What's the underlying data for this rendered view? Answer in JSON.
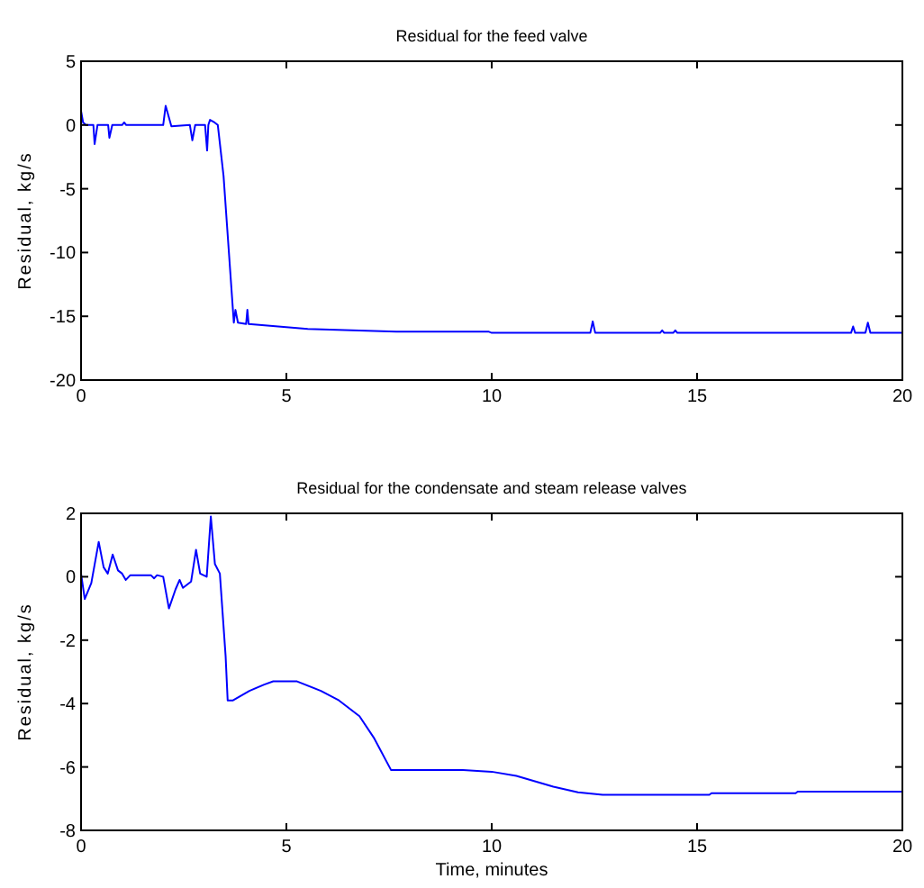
{
  "chart_data": [
    {
      "type": "line",
      "title": "Residual for the feed valve",
      "ylabel": "Residual, kg/s",
      "xlim": [
        0,
        20
      ],
      "ylim": [
        -20,
        5
      ],
      "xticks": [
        0,
        5,
        10,
        15,
        20
      ],
      "yticks": [
        -20,
        -15,
        -10,
        -5,
        0,
        5
      ],
      "grid": false,
      "x": [
        0,
        0.05,
        0.12,
        0.3,
        0.33,
        0.4,
        0.66,
        0.69,
        0.76,
        1.0,
        1.05,
        1.1,
        2.0,
        2.06,
        2.2,
        2.65,
        2.71,
        2.78,
        3.02,
        3.07,
        3.1,
        3.14,
        3.25,
        3.33,
        3.47,
        3.72,
        3.76,
        3.82,
        4.02,
        4.05,
        4.08,
        4.8,
        5.52,
        7.68,
        7.75,
        9.92,
        10.0,
        12.4,
        12.46,
        12.52,
        14.1,
        14.15,
        14.2,
        14.42,
        14.47,
        14.52,
        18.75,
        18.8,
        18.85,
        19.1,
        19.16,
        19.22,
        20
      ],
      "series": [
        {
          "color": "#0000ff",
          "values": [
            1.1,
            0.2,
            0,
            0,
            -1.5,
            0,
            0,
            -1.0,
            0,
            0,
            0.2,
            0,
            0,
            1.5,
            -0.1,
            0,
            -1.2,
            0,
            0,
            -2.0,
            0,
            0.4,
            0.2,
            0,
            -4,
            -15.5,
            -14.5,
            -15.5,
            -15.6,
            -14.5,
            -15.6,
            -15.8,
            -16.0,
            -16.2,
            -16.2,
            -16.2,
            -16.3,
            -16.3,
            -15.4,
            -16.3,
            -16.3,
            -16.1,
            -16.3,
            -16.3,
            -16.1,
            -16.3,
            -16.3,
            -15.8,
            -16.3,
            -16.3,
            -15.5,
            -16.3,
            -16.3
          ]
        }
      ]
    },
    {
      "type": "line",
      "title": "Residual for the condensate and steam release valves",
      "xlabel": "Time, minutes",
      "ylabel": "Residual, kg/s",
      "xlim": [
        0,
        20
      ],
      "ylim": [
        -8,
        2
      ],
      "xticks": [
        0,
        5,
        10,
        15,
        20
      ],
      "yticks": [
        -8,
        -6,
        -4,
        -2,
        0,
        2
      ],
      "grid": false,
      "x": [
        0,
        0.09,
        0.25,
        0.43,
        0.55,
        0.65,
        0.77,
        0.9,
        1.0,
        1.09,
        1.2,
        1.7,
        1.78,
        1.85,
        2.0,
        2.14,
        2.3,
        2.4,
        2.48,
        2.68,
        2.8,
        2.9,
        3.06,
        3.16,
        3.26,
        3.38,
        3.52,
        3.57,
        3.7,
        4.1,
        4.46,
        4.68,
        5.26,
        5.84,
        6.28,
        6.78,
        7.14,
        7.55,
        8.23,
        9.3,
        10.0,
        10.6,
        11.5,
        12.1,
        12.7,
        15.3,
        15.35,
        17.4,
        17.45,
        20
      ],
      "series": [
        {
          "color": "#0000ff",
          "values": [
            0.1,
            -0.7,
            -0.2,
            1.1,
            0.3,
            0.1,
            0.7,
            0.2,
            0.1,
            -0.1,
            0.05,
            0.05,
            -0.05,
            0.05,
            0,
            -1.0,
            -0.4,
            -0.1,
            -0.35,
            -0.15,
            0.85,
            0.1,
            0,
            1.9,
            0.4,
            0.1,
            -2.5,
            -3.9,
            -3.9,
            -3.6,
            -3.4,
            -3.3,
            -3.3,
            -3.6,
            -3.9,
            -4.4,
            -5.1,
            -6.1,
            -6.1,
            -6.1,
            -6.15,
            -6.28,
            -6.62,
            -6.8,
            -6.88,
            -6.88,
            -6.83,
            -6.83,
            -6.78,
            -6.78
          ]
        }
      ]
    }
  ]
}
